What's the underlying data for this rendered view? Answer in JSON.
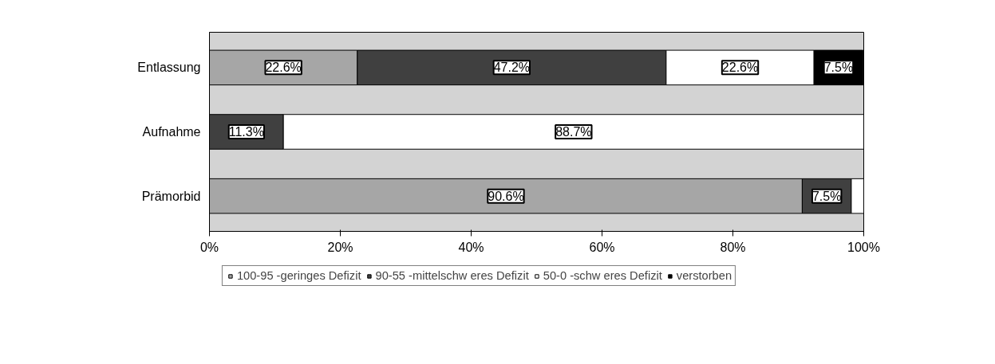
{
  "chart_data": {
    "type": "bar",
    "orientation": "horizontal",
    "stacked": true,
    "categories": [
      "Entlassung",
      "Aufnahme",
      "Prämorbid"
    ],
    "series": [
      {
        "name": "100-95 -geringes Defizit",
        "color": "#a6a6a6",
        "values": [
          22.6,
          0,
          90.6
        ],
        "value_labels": [
          "22.6%",
          null,
          "90.6%"
        ]
      },
      {
        "name": "90-55 -mittelschw eres Defizit",
        "color": "#404040",
        "values": [
          47.2,
          11.3,
          7.5
        ],
        "value_labels": [
          "47.2%",
          "11.3%",
          "7.5%"
        ]
      },
      {
        "name": "50-0 -schw eres Defizit",
        "color": "#ffffff",
        "values": [
          22.6,
          88.7,
          1.9
        ],
        "value_labels": [
          "22.6%",
          "88.7%",
          null
        ]
      },
      {
        "name": "verstorben",
        "color": "#000000",
        "values": [
          7.5,
          0,
          0
        ],
        "value_labels": [
          "7.5%",
          null,
          null
        ]
      }
    ],
    "xlim": [
      0,
      100
    ],
    "xticks": [
      {
        "value": 0,
        "label": "0%"
      },
      {
        "value": 20,
        "label": "20%"
      },
      {
        "value": 40,
        "label": "40%"
      },
      {
        "value": 60,
        "label": "60%"
      },
      {
        "value": 80,
        "label": "80%"
      },
      {
        "value": 100,
        "label": "100%"
      }
    ],
    "grid": false,
    "legend": "bottom"
  }
}
